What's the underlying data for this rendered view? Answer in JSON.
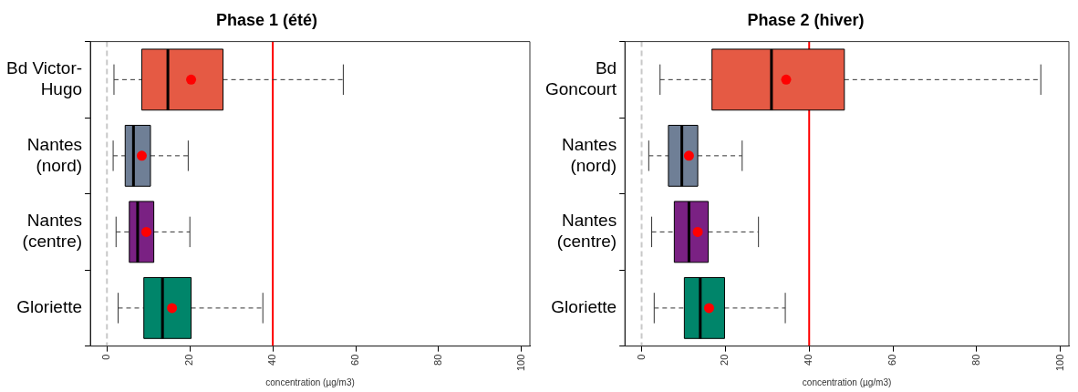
{
  "chart_data": [
    {
      "type": "box",
      "title": "Phase 1 (été)",
      "xlabel": "concentration (µg/m3)",
      "orientation": "horizontal",
      "categories": [
        "Bd Victor-Hugo",
        "Nantes (nord)",
        "Nantes (centre)",
        "Gloriette"
      ],
      "colors": [
        "#e55a44",
        "#6f7f96",
        "#7a2183",
        "#00856a"
      ],
      "boxes": [
        {
          "low": 1.7,
          "q1": 8.4,
          "median": 14.7,
          "q3": 28,
          "high": 57,
          "mean": 20.3
        },
        {
          "low": 1.5,
          "q1": 4.4,
          "median": 6.4,
          "q3": 10.5,
          "high": 19.6,
          "mean": 8.4
        },
        {
          "low": 2.2,
          "q1": 5.4,
          "median": 7.4,
          "q3": 11.3,
          "high": 20,
          "mean": 9.5
        },
        {
          "low": 2.7,
          "q1": 8.9,
          "median": 13.4,
          "q3": 20.3,
          "high": 37.6,
          "mean": 15.7
        }
      ],
      "xlim": [
        -4,
        102
      ],
      "xticks": [
        0,
        20,
        40,
        60,
        80,
        100
      ],
      "grid": false,
      "legend": false,
      "ref_lines": [
        {
          "axis": "x",
          "value": 0,
          "color": "#c8c8c8",
          "line_style": "dashed"
        },
        {
          "axis": "x",
          "value": 40,
          "color": "#ff0000",
          "line_style": "solid"
        }
      ]
    },
    {
      "type": "box",
      "title": "Phase 2 (hiver)",
      "xlabel": "concentration (µg/m3)",
      "orientation": "horizontal",
      "categories": [
        "Bd Goncourt",
        "Nantes (nord)",
        "Nantes (centre)",
        "Gloriette"
      ],
      "colors": [
        "#e55a44",
        "#6f7f96",
        "#7a2183",
        "#00856a"
      ],
      "boxes": [
        {
          "low": 4.4,
          "q1": 16.8,
          "median": 31,
          "q3": 48.4,
          "high": 95.3,
          "mean": 34.5
        },
        {
          "low": 1.7,
          "q1": 6.4,
          "median": 9.6,
          "q3": 13.4,
          "high": 24,
          "mean": 11.3
        },
        {
          "low": 2.4,
          "q1": 7.8,
          "median": 11.3,
          "q3": 15.9,
          "high": 27.9,
          "mean": 13.4
        },
        {
          "low": 3,
          "q1": 10.2,
          "median": 14,
          "q3": 19.8,
          "high": 34.3,
          "mean": 16.1
        }
      ],
      "xlim": [
        -4,
        102
      ],
      "xticks": [
        0,
        20,
        40,
        60,
        80,
        100
      ],
      "grid": false,
      "legend": false,
      "ref_lines": [
        {
          "axis": "x",
          "value": 0,
          "color": "#c8c8c8",
          "line_style": "dashed"
        },
        {
          "axis": "x",
          "value": 40,
          "color": "#ff0000",
          "line_style": "solid"
        }
      ]
    }
  ]
}
